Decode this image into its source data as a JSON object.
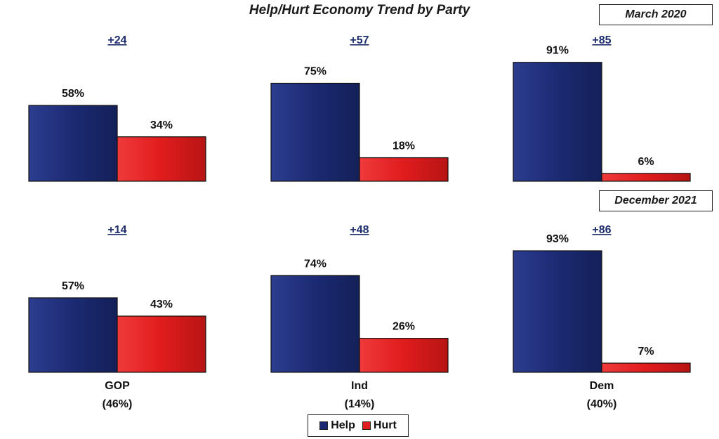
{
  "chart_data": {
    "type": "bar",
    "title": "Help/Hurt Economy Trend by Party",
    "categories": [
      "GOP\n(46%)",
      "Ind\n(14%)",
      "Dem\n(40%)"
    ],
    "category_names": [
      "GOP",
      "Ind",
      "Dem"
    ],
    "category_shares": [
      "(46%)",
      "(14%)",
      "(40%)"
    ],
    "legend": [
      "Help",
      "Hurt"
    ],
    "legend_placement": "bottom-center",
    "colors": {
      "Help": "#1b2a72",
      "Hurt": "#e01c1c"
    },
    "ylim": [
      0,
      100
    ],
    "panels": [
      {
        "period": "March 2020",
        "series": [
          {
            "name": "Help",
            "values": [
              58,
              75,
              91
            ],
            "labels": [
              "58%",
              "75%",
              "91%"
            ]
          },
          {
            "name": "Hurt",
            "values": [
              34,
              18,
              6
            ],
            "labels": [
              "34%",
              "18%",
              "6%"
            ]
          }
        ],
        "differences": [
          "+24",
          "+57",
          "+85"
        ]
      },
      {
        "period": "December 2021",
        "series": [
          {
            "name": "Help",
            "values": [
              57,
              74,
              93
            ],
            "labels": [
              "57%",
              "74%",
              "93%"
            ]
          },
          {
            "name": "Hurt",
            "values": [
              43,
              26,
              7
            ],
            "labels": [
              "43%",
              "26%",
              "7%"
            ]
          }
        ],
        "differences": [
          "+14",
          "+48",
          "+86"
        ]
      }
    ]
  }
}
